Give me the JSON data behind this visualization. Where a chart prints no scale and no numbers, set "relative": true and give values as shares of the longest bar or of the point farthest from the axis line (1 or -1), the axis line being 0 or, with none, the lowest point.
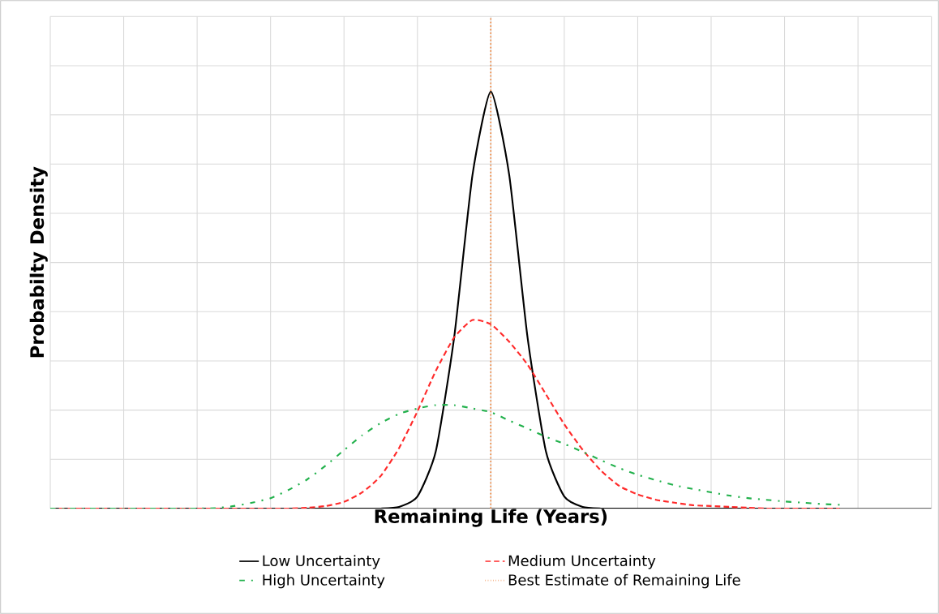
{
  "chart_data": {
    "type": "line",
    "relative": true,
    "grid": true,
    "legend": "bottom",
    "marker": "none",
    "xlabel": "Remaining Life (Years)",
    "ylabel": "Probabilty Density",
    "categories": [
      null,
      null,
      null,
      null,
      null,
      null,
      null,
      null,
      null,
      null,
      null,
      null,
      null,
      null,
      null,
      null,
      null,
      null,
      null,
      null,
      null,
      null,
      null,
      null,
      null,
      null,
      null,
      null,
      null,
      null,
      null,
      null,
      null,
      null,
      null,
      null,
      null,
      null,
      null,
      null,
      null,
      null,
      null,
      null,
      null,
      null,
      null,
      null,
      null
    ],
    "series": [
      {
        "name": "Low Uncertainty",
        "color": "#000000",
        "line_style": "solid",
        "values": [
          0,
          0,
          0,
          0,
          0,
          0,
          0,
          0,
          0,
          0,
          0,
          0,
          0,
          0,
          0,
          0,
          0,
          0,
          0,
          0.004,
          0.029,
          0.137,
          0.41,
          0.8,
          1,
          0.8,
          0.41,
          0.137,
          0.029,
          0.004,
          0,
          0,
          0,
          0,
          0,
          0,
          0,
          0,
          0,
          0,
          0,
          0,
          0,
          0,
          null,
          null,
          null,
          null,
          null
        ]
      },
      {
        "name": "Medium Uncertainty",
        "color": "#ff2a2a",
        "line_style": "dashed",
        "values": [
          0,
          0,
          0,
          0,
          0,
          0,
          0,
          0,
          0,
          0,
          0,
          0,
          0,
          0,
          0.002,
          0.006,
          0.016,
          0.039,
          0.078,
          0.145,
          0.233,
          0.33,
          0.41,
          0.452,
          0.442,
          0.4,
          0.345,
          0.274,
          0.202,
          0.141,
          0.091,
          0.054,
          0.034,
          0.021,
          0.014,
          0.008,
          0.006,
          0.004,
          0.002,
          0,
          0,
          0,
          0,
          0,
          null,
          null,
          null,
          null,
          null
        ]
      },
      {
        "name": "High Uncertainty",
        "color": "#22b14c",
        "line_style": "dashdot",
        "values": [
          0,
          0,
          0,
          0,
          0,
          0,
          0,
          0,
          0,
          0.001,
          0.006,
          0.014,
          0.025,
          0.045,
          0.07,
          0.103,
          0.14,
          0.176,
          0.205,
          0.227,
          0.24,
          0.248,
          0.248,
          0.24,
          0.231,
          0.211,
          0.192,
          0.172,
          0.155,
          0.136,
          0.116,
          0.097,
          0.081,
          0.068,
          0.056,
          0.047,
          0.039,
          0.031,
          0.025,
          0.021,
          0.017,
          0.014,
          0.011,
          0.009,
          null,
          null,
          null,
          null,
          null
        ]
      }
    ],
    "ref_lines": [
      {
        "axis": "x",
        "label": "Best Estimate of Remaining Life",
        "color": "#ed7d31",
        "line_style": "dotted"
      }
    ]
  }
}
